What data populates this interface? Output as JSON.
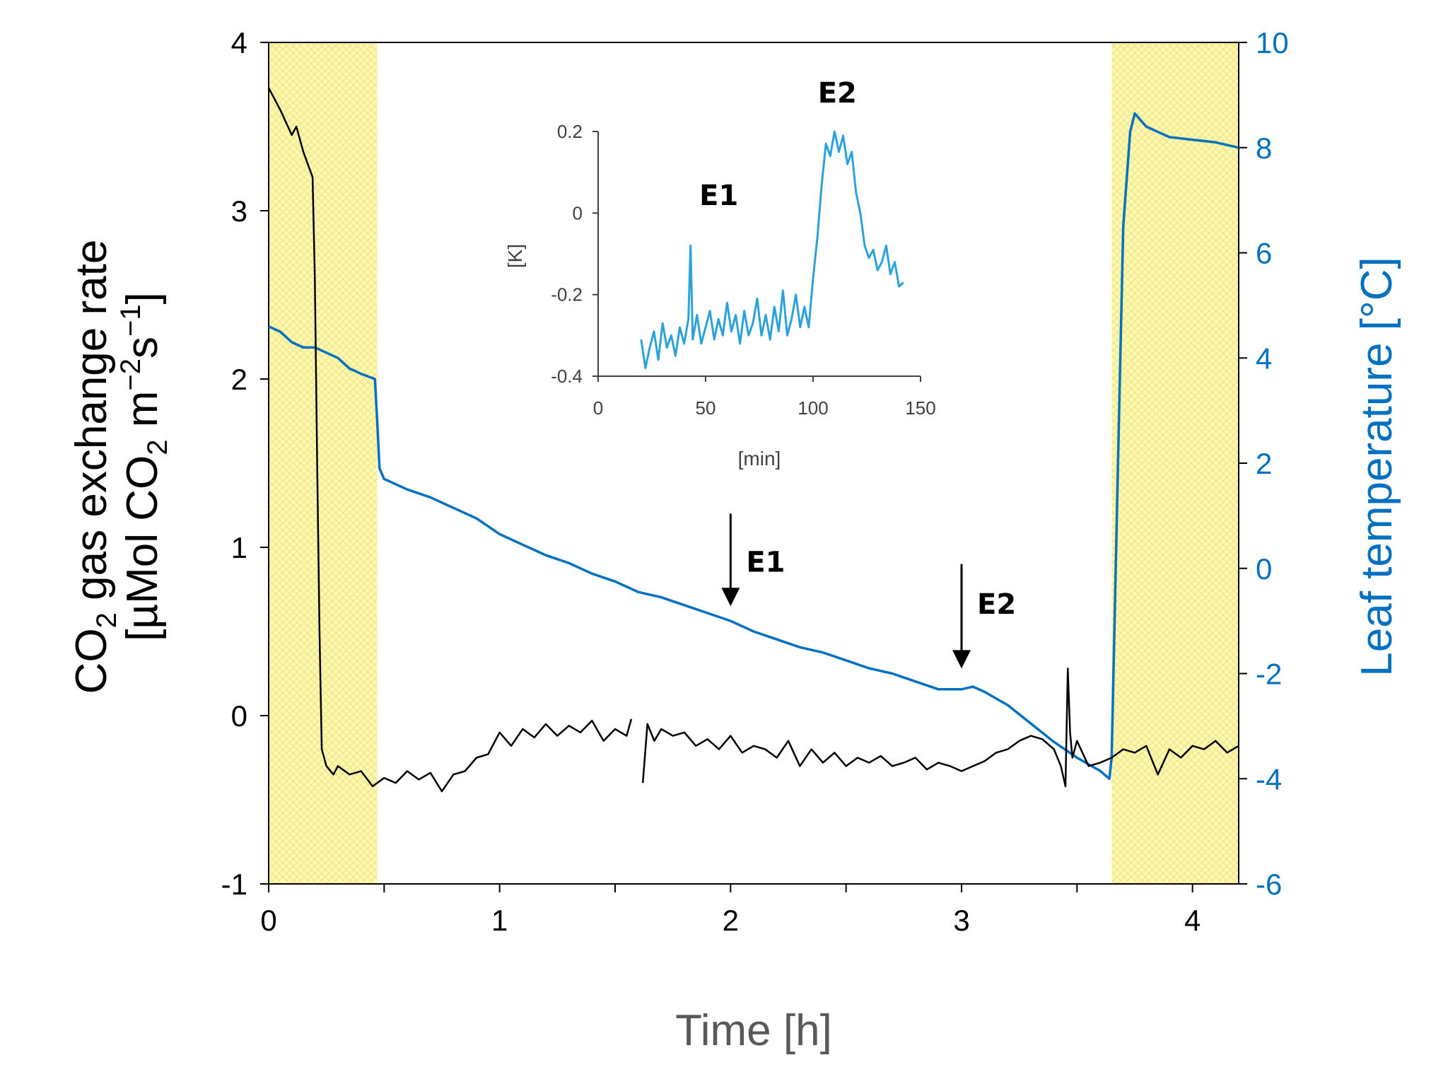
{
  "chart_data": {
    "type": "line",
    "xlabel": "Time [h]",
    "ylabel_left": {
      "line1_prefix": "CO",
      "line1_sub": "2",
      "line1_suffix": " gas exchange rate",
      "line2": "[µMol CO",
      "line2_sub": "2",
      "line2_mid": " m",
      "line2_sup1": "−2",
      "line2_s": "s",
      "line2_sup2": "−1",
      "line2_end": "]"
    },
    "ylabel_right": "Leaf temperature [°C]",
    "xlim": [
      0,
      4.2
    ],
    "ylim_left": [
      -1,
      4
    ],
    "ylim_right": [
      -6,
      10
    ],
    "x_ticks": [
      "0",
      "1",
      "2",
      "3",
      "4"
    ],
    "x_tick_values": [
      0,
      1,
      2,
      3,
      4
    ],
    "y_left_ticks": [
      "-1",
      "0",
      "1",
      "2",
      "3",
      "4"
    ],
    "y_left_tick_values": [
      -1,
      0,
      1,
      2,
      3,
      4
    ],
    "y_right_ticks": [
      "-6",
      "-4",
      "-2",
      "0",
      "2",
      "4",
      "6",
      "8",
      "10"
    ],
    "y_right_tick_values": [
      -6,
      -4,
      -2,
      0,
      2,
      4,
      6,
      8,
      10
    ],
    "light_periods_h": [
      [
        0,
        0.47
      ],
      [
        3.65,
        4.2
      ]
    ],
    "series": [
      {
        "name": "CO2 gas exchange rate",
        "axis": "left",
        "color": "#000000",
        "x": [
          0,
          0.05,
          0.1,
          0.12,
          0.15,
          0.19,
          0.2,
          0.21,
          0.22,
          0.23,
          0.25,
          0.28,
          0.3,
          0.35,
          0.4,
          0.45,
          0.5,
          0.55,
          0.6,
          0.65,
          0.7,
          0.75,
          0.8,
          0.85,
          0.9,
          0.95,
          1.0,
          1.05,
          1.1,
          1.15,
          1.2,
          1.25,
          1.3,
          1.35,
          1.4,
          1.45,
          1.5,
          1.55,
          1.57
        ],
        "y": [
          3.73,
          3.6,
          3.45,
          3.5,
          3.35,
          3.2,
          2.6,
          1.5,
          0.5,
          -0.2,
          -0.3,
          -0.35,
          -0.3,
          -0.35,
          -0.33,
          -0.42,
          -0.37,
          -0.4,
          -0.33,
          -0.38,
          -0.34,
          -0.45,
          -0.35,
          -0.33,
          -0.25,
          -0.23,
          -0.1,
          -0.18,
          -0.08,
          -0.13,
          -0.05,
          -0.12,
          -0.06,
          -0.1,
          -0.03,
          -0.15,
          -0.08,
          -0.12,
          -0.02
        ],
        "x2": [
          1.62,
          1.64,
          1.67,
          1.7,
          1.75,
          1.8,
          1.85,
          1.9,
          1.95,
          2.0,
          2.05,
          2.1,
          2.15,
          2.2,
          2.25,
          2.3,
          2.35,
          2.4,
          2.45,
          2.5,
          2.55,
          2.6,
          2.65,
          2.7,
          2.75,
          2.8,
          2.85,
          2.9,
          2.95,
          3.0,
          3.05,
          3.1,
          3.15,
          3.2,
          3.25,
          3.3,
          3.35,
          3.4,
          3.43,
          3.45,
          3.46,
          3.47,
          3.48,
          3.5,
          3.55,
          3.6,
          3.65,
          3.7,
          3.75,
          3.8,
          3.85,
          3.9,
          3.95,
          4.0,
          4.05,
          4.1,
          4.15,
          4.2
        ],
        "y2": [
          -0.4,
          -0.05,
          -0.15,
          -0.08,
          -0.12,
          -0.1,
          -0.18,
          -0.14,
          -0.2,
          -0.12,
          -0.22,
          -0.18,
          -0.2,
          -0.25,
          -0.15,
          -0.3,
          -0.2,
          -0.28,
          -0.22,
          -0.3,
          -0.25,
          -0.28,
          -0.24,
          -0.3,
          -0.28,
          -0.25,
          -0.32,
          -0.28,
          -0.3,
          -0.33,
          -0.3,
          -0.27,
          -0.22,
          -0.2,
          -0.15,
          -0.12,
          -0.14,
          -0.2,
          -0.3,
          -0.42,
          0.28,
          -0.1,
          -0.25,
          -0.15,
          -0.3,
          -0.28,
          -0.25,
          -0.2,
          -0.22,
          -0.18,
          -0.35,
          -0.2,
          -0.25,
          -0.18,
          -0.2,
          -0.15,
          -0.22,
          -0.18
        ]
      },
      {
        "name": "Leaf temperature",
        "axis": "right",
        "color": "#0070c0",
        "x": [
          0,
          0.05,
          0.1,
          0.15,
          0.2,
          0.25,
          0.3,
          0.35,
          0.4,
          0.46,
          0.47,
          0.48,
          0.5,
          0.6,
          0.7,
          0.8,
          0.9,
          1.0,
          1.1,
          1.2,
          1.3,
          1.4,
          1.5,
          1.6,
          1.7,
          1.8,
          1.9,
          2.0,
          2.1,
          2.2,
          2.3,
          2.4,
          2.5,
          2.6,
          2.7,
          2.8,
          2.9,
          3.0,
          3.05,
          3.1,
          3.2,
          3.3,
          3.4,
          3.5,
          3.6,
          3.64,
          3.65,
          3.68,
          3.7,
          3.73,
          3.75,
          3.8,
          3.9,
          4.0,
          4.1,
          4.2
        ],
        "y": [
          4.6,
          4.5,
          4.3,
          4.2,
          4.2,
          4.1,
          4.0,
          3.8,
          3.7,
          3.6,
          2.8,
          1.9,
          1.7,
          1.5,
          1.35,
          1.15,
          0.95,
          0.65,
          0.45,
          0.25,
          0.1,
          -0.1,
          -0.25,
          -0.45,
          -0.55,
          -0.7,
          -0.85,
          -1.0,
          -1.2,
          -1.35,
          -1.5,
          -1.6,
          -1.75,
          -1.9,
          -2.0,
          -2.15,
          -2.3,
          -2.3,
          -2.25,
          -2.35,
          -2.6,
          -2.95,
          -3.3,
          -3.6,
          -3.85,
          -4.0,
          -3.6,
          2.5,
          6.5,
          8.3,
          8.65,
          8.4,
          8.2,
          8.15,
          8.1,
          8.0
        ]
      }
    ],
    "annotations": [
      {
        "label": "E1",
        "x": 2.0,
        "arrow_top_left": 1.2,
        "arrow_tip_left": 0.65
      },
      {
        "label": "E2",
        "x": 3.0,
        "arrow_top_left": 0.9,
        "arrow_tip_left": 0.28
      }
    ],
    "inset": {
      "type": "line",
      "xlabel": "[min]",
      "ylabel": "[K]",
      "xlim": [
        0,
        150
      ],
      "ylim": [
        -0.4,
        0.2
      ],
      "x_ticks": [
        "0",
        "50",
        "100",
        "150"
      ],
      "x_tick_values": [
        0,
        50,
        100,
        150
      ],
      "y_ticks": [
        "-0.4",
        "-0.2",
        "0",
        "0.2"
      ],
      "y_tick_values": [
        -0.4,
        -0.2,
        0,
        0.2
      ],
      "color": "#2ba2dc",
      "x": [
        20,
        22,
        24,
        26,
        28,
        30,
        32,
        34,
        36,
        38,
        40,
        42,
        43,
        44,
        46,
        48,
        50,
        52,
        54,
        56,
        58,
        60,
        62,
        64,
        66,
        68,
        70,
        72,
        74,
        76,
        78,
        80,
        82,
        84,
        86,
        88,
        90,
        92,
        94,
        96,
        98,
        100,
        102,
        104,
        106,
        108,
        110,
        112,
        114,
        116,
        118,
        120,
        122,
        124,
        126,
        128,
        130,
        132,
        134,
        136,
        138,
        140,
        142
      ],
      "y": [
        -0.31,
        -0.38,
        -0.33,
        -0.29,
        -0.36,
        -0.27,
        -0.33,
        -0.3,
        -0.35,
        -0.28,
        -0.32,
        -0.26,
        -0.08,
        -0.31,
        -0.25,
        -0.32,
        -0.28,
        -0.24,
        -0.31,
        -0.26,
        -0.3,
        -0.22,
        -0.29,
        -0.25,
        -0.32,
        -0.24,
        -0.3,
        -0.27,
        -0.21,
        -0.3,
        -0.25,
        -0.31,
        -0.23,
        -0.29,
        -0.19,
        -0.3,
        -0.26,
        -0.2,
        -0.28,
        -0.23,
        -0.28,
        -0.16,
        -0.06,
        0.07,
        0.17,
        0.14,
        0.2,
        0.15,
        0.19,
        0.12,
        0.15,
        0.05,
        0.0,
        -0.08,
        -0.11,
        -0.09,
        -0.14,
        -0.12,
        -0.08,
        -0.15,
        -0.12,
        -0.18,
        -0.17
      ]
    },
    "inset_annotations": [
      {
        "label": "E1",
        "x": 43
      },
      {
        "label": "E2",
        "x": 108
      }
    ]
  },
  "colors": {
    "temp_axis": "#0070c0",
    "inset_line": "#2ba2dc",
    "light_fill": "#fff9b0"
  }
}
